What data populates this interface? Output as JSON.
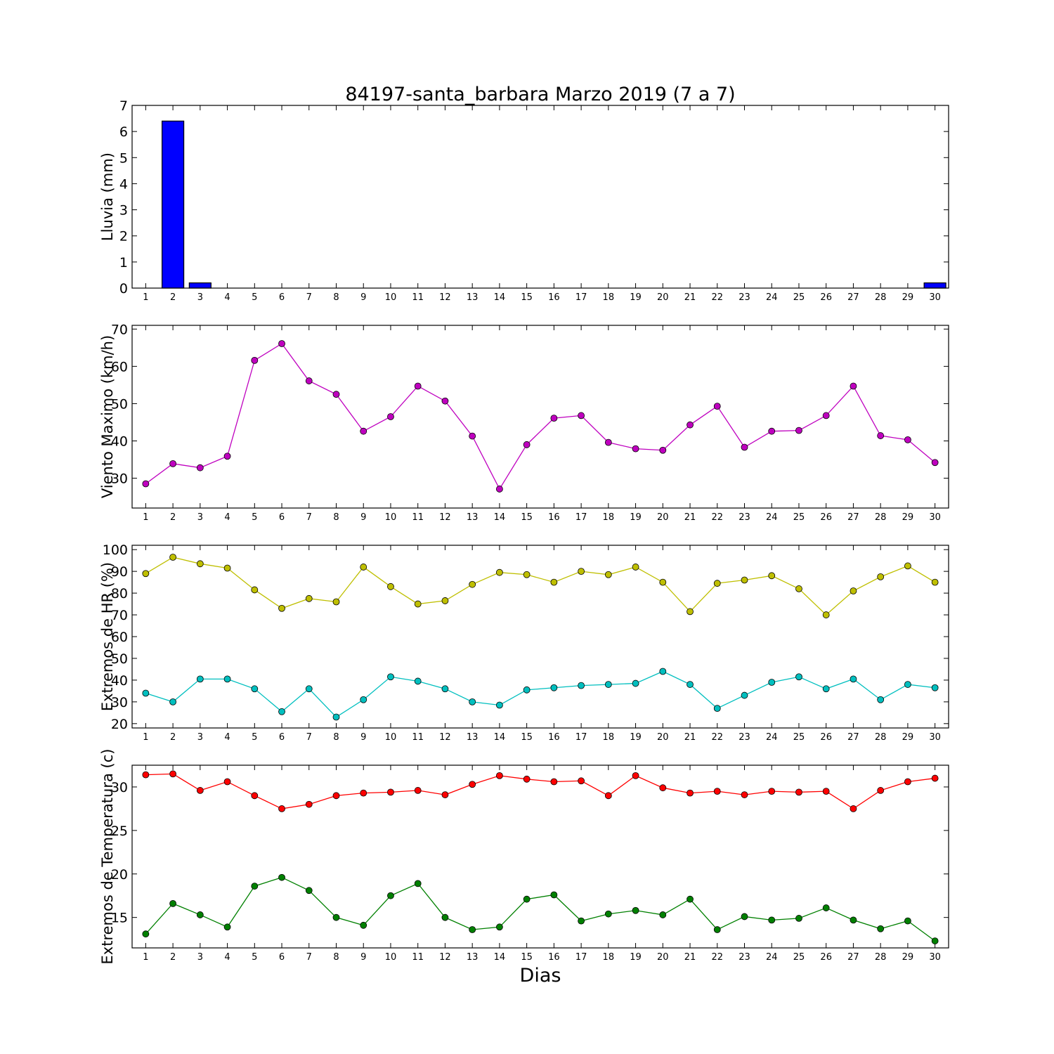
{
  "figure_title": "84197-santa_barbara Marzo 2019  (7 a 7)",
  "xlabel": "Dias",
  "colors": {
    "rain": "#0000ff",
    "wind": "#bf00bf",
    "hr_max": "#bfbf00",
    "hr_min": "#00bfbf",
    "temp_max": "#ff0000",
    "temp_min": "#008000"
  },
  "chart_data": [
    {
      "type": "bar",
      "ylabel": "Lluvia (mm)",
      "x": [
        1,
        2,
        3,
        4,
        5,
        6,
        7,
        8,
        9,
        10,
        11,
        12,
        13,
        14,
        15,
        16,
        17,
        18,
        19,
        20,
        21,
        22,
        23,
        24,
        25,
        26,
        27,
        28,
        29,
        30
      ],
      "xlim": [
        0.5,
        30.5
      ],
      "ylim": [
        0,
        7
      ],
      "yticks": [
        0,
        1,
        2,
        3,
        4,
        5,
        6,
        7
      ],
      "series": [
        {
          "values": [
            0,
            6.4,
            0.2,
            0,
            0,
            0,
            0,
            0,
            0,
            0,
            0,
            0,
            0,
            0,
            0,
            0,
            0,
            0,
            0,
            0,
            0,
            0,
            0,
            0,
            0,
            0,
            0,
            0,
            0,
            0.2
          ]
        }
      ]
    },
    {
      "type": "line",
      "ylabel": "Viento Maximo (km/h)",
      "x": [
        1,
        2,
        3,
        4,
        5,
        6,
        7,
        8,
        9,
        10,
        11,
        12,
        13,
        14,
        15,
        16,
        17,
        18,
        19,
        20,
        21,
        22,
        23,
        24,
        25,
        26,
        27,
        28,
        29,
        30
      ],
      "xlim": [
        0.5,
        30.5
      ],
      "ylim": [
        22,
        71
      ],
      "yticks": [
        30,
        40,
        50,
        60,
        70
      ],
      "series": [
        {
          "values": [
            28.5,
            33.9,
            32.8,
            35.9,
            61.6,
            66.1,
            56.1,
            52.5,
            42.6,
            46.5,
            54.7,
            50.7,
            41.3,
            27.1,
            39.0,
            46.1,
            46.8,
            39.6,
            37.9,
            37.5,
            44.3,
            49.3,
            38.3,
            42.6,
            42.8,
            46.8,
            54.7,
            41.4,
            40.3,
            34.2
          ]
        }
      ]
    },
    {
      "type": "line",
      "ylabel": "Extremos de HR (%)",
      "x": [
        1,
        2,
        3,
        4,
        5,
        6,
        7,
        8,
        9,
        10,
        11,
        12,
        13,
        14,
        15,
        16,
        17,
        18,
        19,
        20,
        21,
        22,
        23,
        24,
        25,
        26,
        27,
        28,
        29,
        30
      ],
      "xlim": [
        0.5,
        30.5
      ],
      "ylim": [
        18,
        102
      ],
      "yticks": [
        20,
        30,
        40,
        50,
        60,
        70,
        80,
        90,
        100
      ],
      "series": [
        {
          "values": [
            89,
            96.5,
            93.5,
            91.5,
            81.5,
            73,
            77.5,
            76,
            92,
            83,
            75,
            76.5,
            84,
            89.5,
            88.5,
            85,
            90,
            88.5,
            92,
            85,
            71.5,
            84.5,
            86,
            88,
            82,
            70,
            81,
            87.5,
            92.5,
            85
          ]
        },
        {
          "values": [
            34,
            30,
            40.5,
            40.5,
            36,
            25.5,
            36,
            23,
            31,
            41.5,
            39.5,
            36,
            30,
            28.5,
            35.5,
            36.5,
            37.5,
            38,
            38.5,
            44,
            38,
            27,
            33,
            39,
            41.5,
            36,
            40.5,
            31,
            38,
            36.5
          ]
        }
      ]
    },
    {
      "type": "line",
      "ylabel": "Extremos de Temperatura (c)",
      "x": [
        1,
        2,
        3,
        4,
        5,
        6,
        7,
        8,
        9,
        10,
        11,
        12,
        13,
        14,
        15,
        16,
        17,
        18,
        19,
        20,
        21,
        22,
        23,
        24,
        25,
        26,
        27,
        28,
        29,
        30
      ],
      "xlim": [
        0.5,
        30.5
      ],
      "ylim": [
        11.5,
        32.5
      ],
      "yticks": [
        15,
        20,
        25,
        30
      ],
      "series": [
        {
          "values": [
            31.4,
            31.5,
            29.6,
            30.6,
            29.0,
            27.5,
            28.0,
            29.0,
            29.3,
            29.4,
            29.6,
            29.1,
            30.3,
            31.3,
            30.9,
            30.6,
            30.7,
            29.0,
            31.3,
            29.9,
            29.3,
            29.5,
            29.1,
            29.5,
            29.4,
            29.5,
            27.5,
            29.6,
            30.6,
            31.0
          ]
        },
        {
          "values": [
            13.1,
            16.6,
            15.3,
            13.9,
            18.6,
            19.6,
            18.1,
            15.0,
            14.1,
            17.5,
            18.9,
            15.0,
            13.6,
            13.9,
            17.1,
            17.6,
            14.6,
            15.4,
            15.8,
            15.3,
            17.1,
            13.6,
            15.1,
            14.7,
            14.9,
            16.1,
            14.7,
            13.7,
            14.6,
            12.3
          ]
        }
      ]
    }
  ]
}
